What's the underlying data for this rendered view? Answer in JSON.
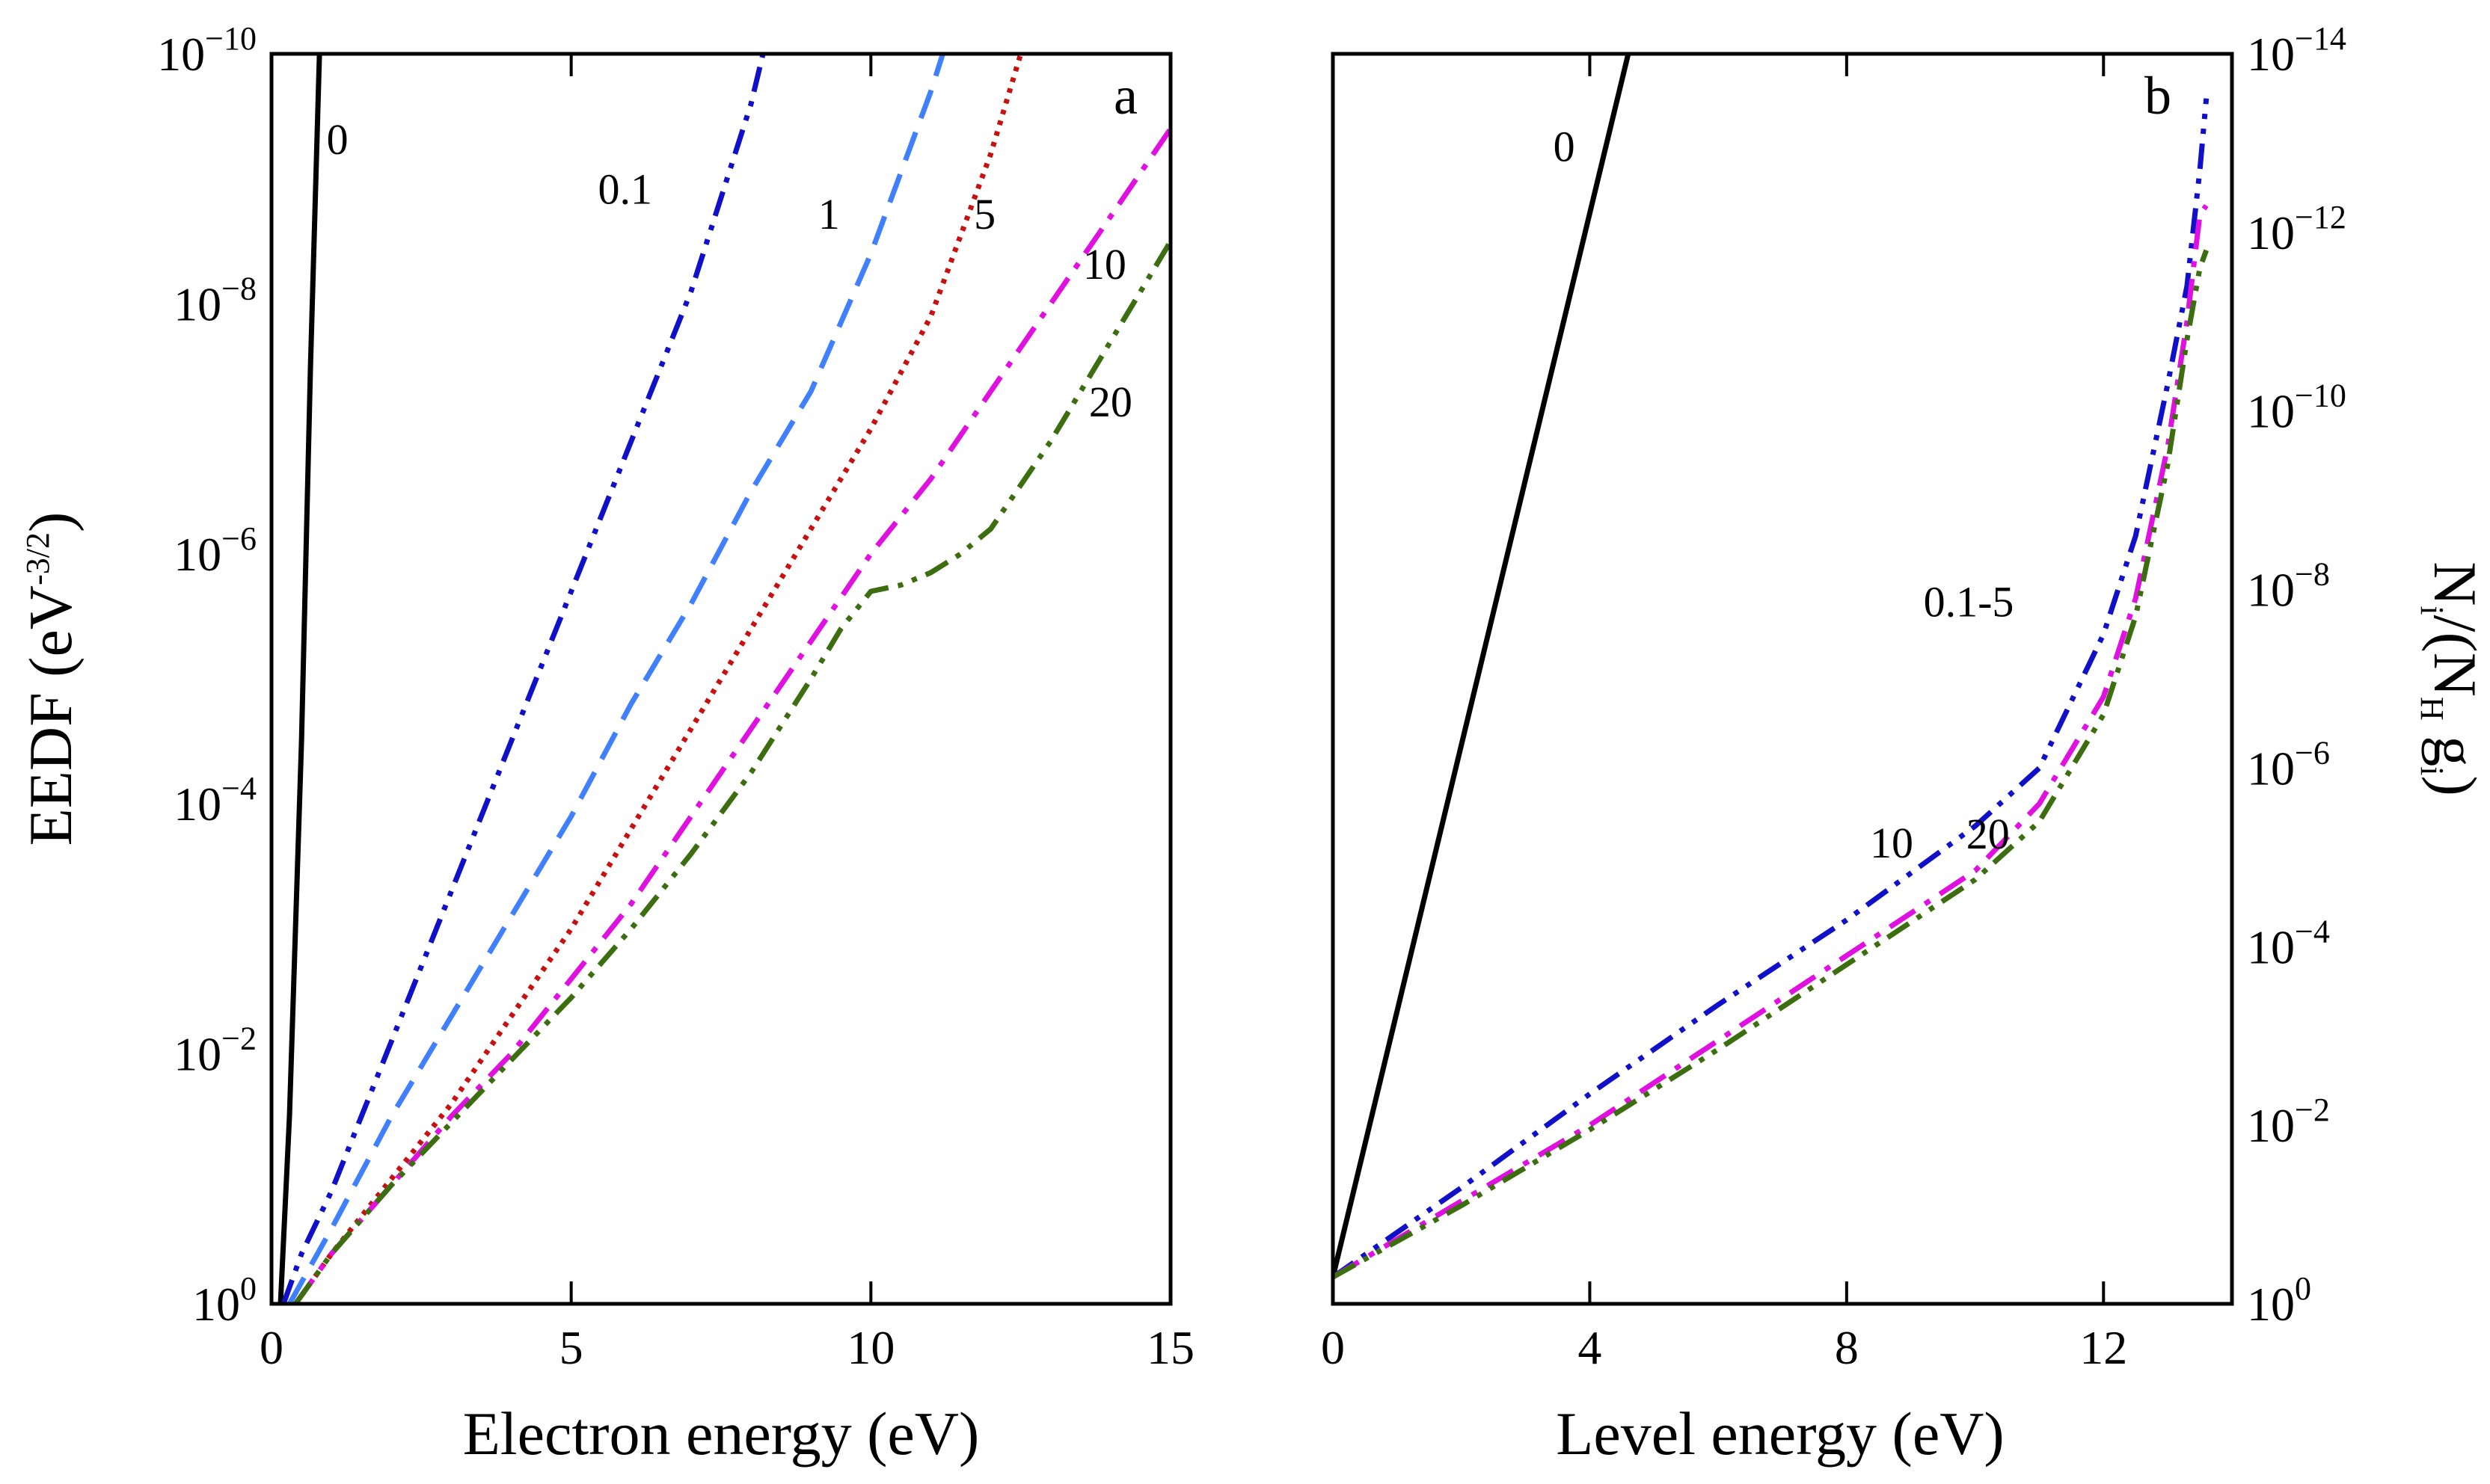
{
  "figure": {
    "background": "#ffffff"
  },
  "chart_data": [
    {
      "type": "line",
      "panel_label": "a",
      "xlabel": "Electron energy (eV)",
      "ylabel_base": "EEDF (eV",
      "ylabel_exp": "-3/2",
      "ylabel_close": ")",
      "y_scale": "log",
      "xlim": [
        0,
        15
      ],
      "ylim_exp": [
        -10,
        0
      ],
      "xticks": [
        0,
        5,
        10,
        15
      ],
      "xtick_labels": [
        "0",
        "5",
        "10",
        "15"
      ],
      "yticks_exp": [
        0,
        -2,
        -4,
        -6,
        -8,
        -10
      ],
      "ytick_base": "10",
      "ytick_exp_labels": [
        "0",
        "−2",
        "−4",
        "−6",
        "−8",
        "−10"
      ],
      "series": [
        {
          "name": "0",
          "label": "0",
          "color": "#000000",
          "dash": "solid",
          "x": [
            0.15,
            0.3,
            0.5,
            0.65,
            0.8
          ],
          "log10_y": [
            0,
            -1.5,
            -4.5,
            -7.5,
            -10
          ]
        },
        {
          "name": "0.1",
          "label": "0.1",
          "color": "#1010c8",
          "dash": "dashdotdot",
          "x": [
            0.2,
            0.5,
            1,
            2,
            3,
            4,
            5,
            6,
            7,
            8,
            8.2
          ],
          "log10_y": [
            0,
            -0.4,
            -0.9,
            -2.1,
            -3.3,
            -4.5,
            -5.7,
            -6.9,
            -8.1,
            -9.6,
            -10
          ]
        },
        {
          "name": "1",
          "label": "1",
          "color": "#4080ff",
          "dash": "dashed",
          "x": [
            0.3,
            1,
            2,
            3,
            4,
            5,
            6,
            7,
            8,
            9,
            10,
            11,
            11.2
          ],
          "log10_y": [
            0,
            -0.6,
            -1.5,
            -2.3,
            -3.1,
            -3.9,
            -4.8,
            -5.6,
            -6.5,
            -7.3,
            -8.4,
            -9.7,
            -10
          ]
        },
        {
          "name": "5",
          "label": "5",
          "color": "#c81010",
          "dash": "dotted",
          "x": [
            0.4,
            1,
            2,
            3,
            4,
            5,
            6,
            7,
            8,
            9,
            10,
            11,
            12,
            12.5
          ],
          "log10_y": [
            0,
            -0.4,
            -1.0,
            -1.6,
            -2.3,
            -3.0,
            -3.8,
            -4.6,
            -5.4,
            -6.2,
            -7.0,
            -7.9,
            -9.2,
            -10
          ]
        },
        {
          "name": "10",
          "label": "10",
          "color": "#e010e0",
          "dash": "dashdot",
          "x": [
            0.4,
            1,
            2,
            3,
            4,
            5,
            6,
            7,
            8,
            9,
            10,
            11,
            12,
            13,
            14,
            15
          ],
          "log10_y": [
            0,
            -0.4,
            -0.95,
            -1.5,
            -2.0,
            -2.6,
            -3.2,
            -3.9,
            -4.6,
            -5.3,
            -6.0,
            -6.6,
            -7.3,
            -8.0,
            -8.7,
            -9.4
          ]
        },
        {
          "name": "20",
          "label": "20",
          "color": "#3c6e10",
          "dash": "dashdotdot",
          "x": [
            0.4,
            1,
            2,
            3,
            4,
            5,
            6,
            7,
            8,
            9,
            9.5,
            10,
            10.5,
            11,
            11.5,
            12,
            13,
            14,
            15
          ],
          "log10_y": [
            0,
            -0.4,
            -0.95,
            -1.45,
            -1.95,
            -2.45,
            -3.0,
            -3.6,
            -4.25,
            -5.0,
            -5.4,
            -5.7,
            -5.75,
            -5.85,
            -6.0,
            -6.2,
            -6.9,
            -7.7,
            -8.5
          ]
        }
      ],
      "curve_labels": [
        {
          "text": "0",
          "x": 1.1,
          "log10_y": -9.2
        },
        {
          "text": "0.1",
          "x": 5.9,
          "log10_y": -8.8
        },
        {
          "text": "1",
          "x": 9.3,
          "log10_y": -8.6
        },
        {
          "text": "5",
          "x": 11.9,
          "log10_y": -8.6
        },
        {
          "text": "10",
          "x": 13.9,
          "log10_y": -8.2
        },
        {
          "text": "20",
          "x": 14.0,
          "log10_y": -7.1
        }
      ]
    },
    {
      "type": "line",
      "panel_label": "b",
      "xlabel": "Level energy (eV)",
      "ylabel_base": "N",
      "ylabel_sub": "i",
      "ylabel_mid": "/(N",
      "ylabel_sub2": "H",
      "ylabel_mid2": " g",
      "ylabel_sub3": "i",
      "ylabel_close": ")",
      "y_scale": "log",
      "xlim": [
        0,
        14
      ],
      "ylim_exp": [
        -14,
        0
      ],
      "xticks": [
        0,
        4,
        8,
        12
      ],
      "xtick_labels": [
        "0",
        "4",
        "8",
        "12"
      ],
      "yticks_exp": [
        0,
        -2,
        -4,
        -6,
        -8,
        -10,
        -12,
        -14
      ],
      "ytick_base": "10",
      "ytick_exp_labels": [
        "0",
        "−2",
        "−4",
        "−6",
        "−8",
        "−10",
        "−12",
        "−14"
      ],
      "series": [
        {
          "name": "0",
          "label": "0",
          "color": "#000000",
          "dash": "solid",
          "x": [
            0,
            4.6
          ],
          "log10_y": [
            -0.3,
            -14
          ]
        },
        {
          "name": "0.1-5",
          "label": "0.1-5",
          "color": "#1010c8",
          "dash": "dashdotdot",
          "x": [
            0,
            2,
            4,
            6,
            8,
            10,
            11,
            12,
            12.5,
            13,
            13.3,
            13.5,
            13.6
          ],
          "log10_y": [
            -0.3,
            -1.3,
            -2.35,
            -3.35,
            -4.3,
            -5.35,
            -6.0,
            -7.5,
            -8.6,
            -10.3,
            -11.4,
            -12.7,
            -13.5
          ]
        },
        {
          "name": "10",
          "label": "10",
          "color": "#e010e0",
          "dash": "dashdot",
          "x": [
            0,
            2,
            4,
            6,
            8,
            10,
            11,
            12,
            12.5,
            13,
            13.3,
            13.5,
            13.6
          ],
          "log10_y": [
            -0.3,
            -1.15,
            -2.0,
            -2.95,
            -3.9,
            -4.85,
            -5.6,
            -6.8,
            -7.9,
            -9.6,
            -11.0,
            -12.2,
            -12.3
          ]
        },
        {
          "name": "20",
          "label": "20",
          "color": "#3c6e10",
          "dash": "dashdotdot",
          "x": [
            0,
            2,
            4,
            6,
            8,
            10,
            11,
            12,
            12.5,
            13,
            13.3,
            13.5,
            13.6
          ],
          "log10_y": [
            -0.3,
            -1.1,
            -1.95,
            -2.85,
            -3.8,
            -4.75,
            -5.4,
            -6.6,
            -7.7,
            -9.4,
            -10.8,
            -11.6,
            -11.8
          ]
        }
      ],
      "curve_labels": [
        {
          "text": "0",
          "x": 3.6,
          "log10_y": -12.8
        },
        {
          "text": "0.1-5",
          "x": 9.9,
          "log10_y": -7.7
        },
        {
          "text": "10",
          "x": 8.7,
          "log10_y": -5.0
        },
        {
          "text": "20",
          "x": 10.2,
          "log10_y": -5.1
        }
      ]
    }
  ]
}
